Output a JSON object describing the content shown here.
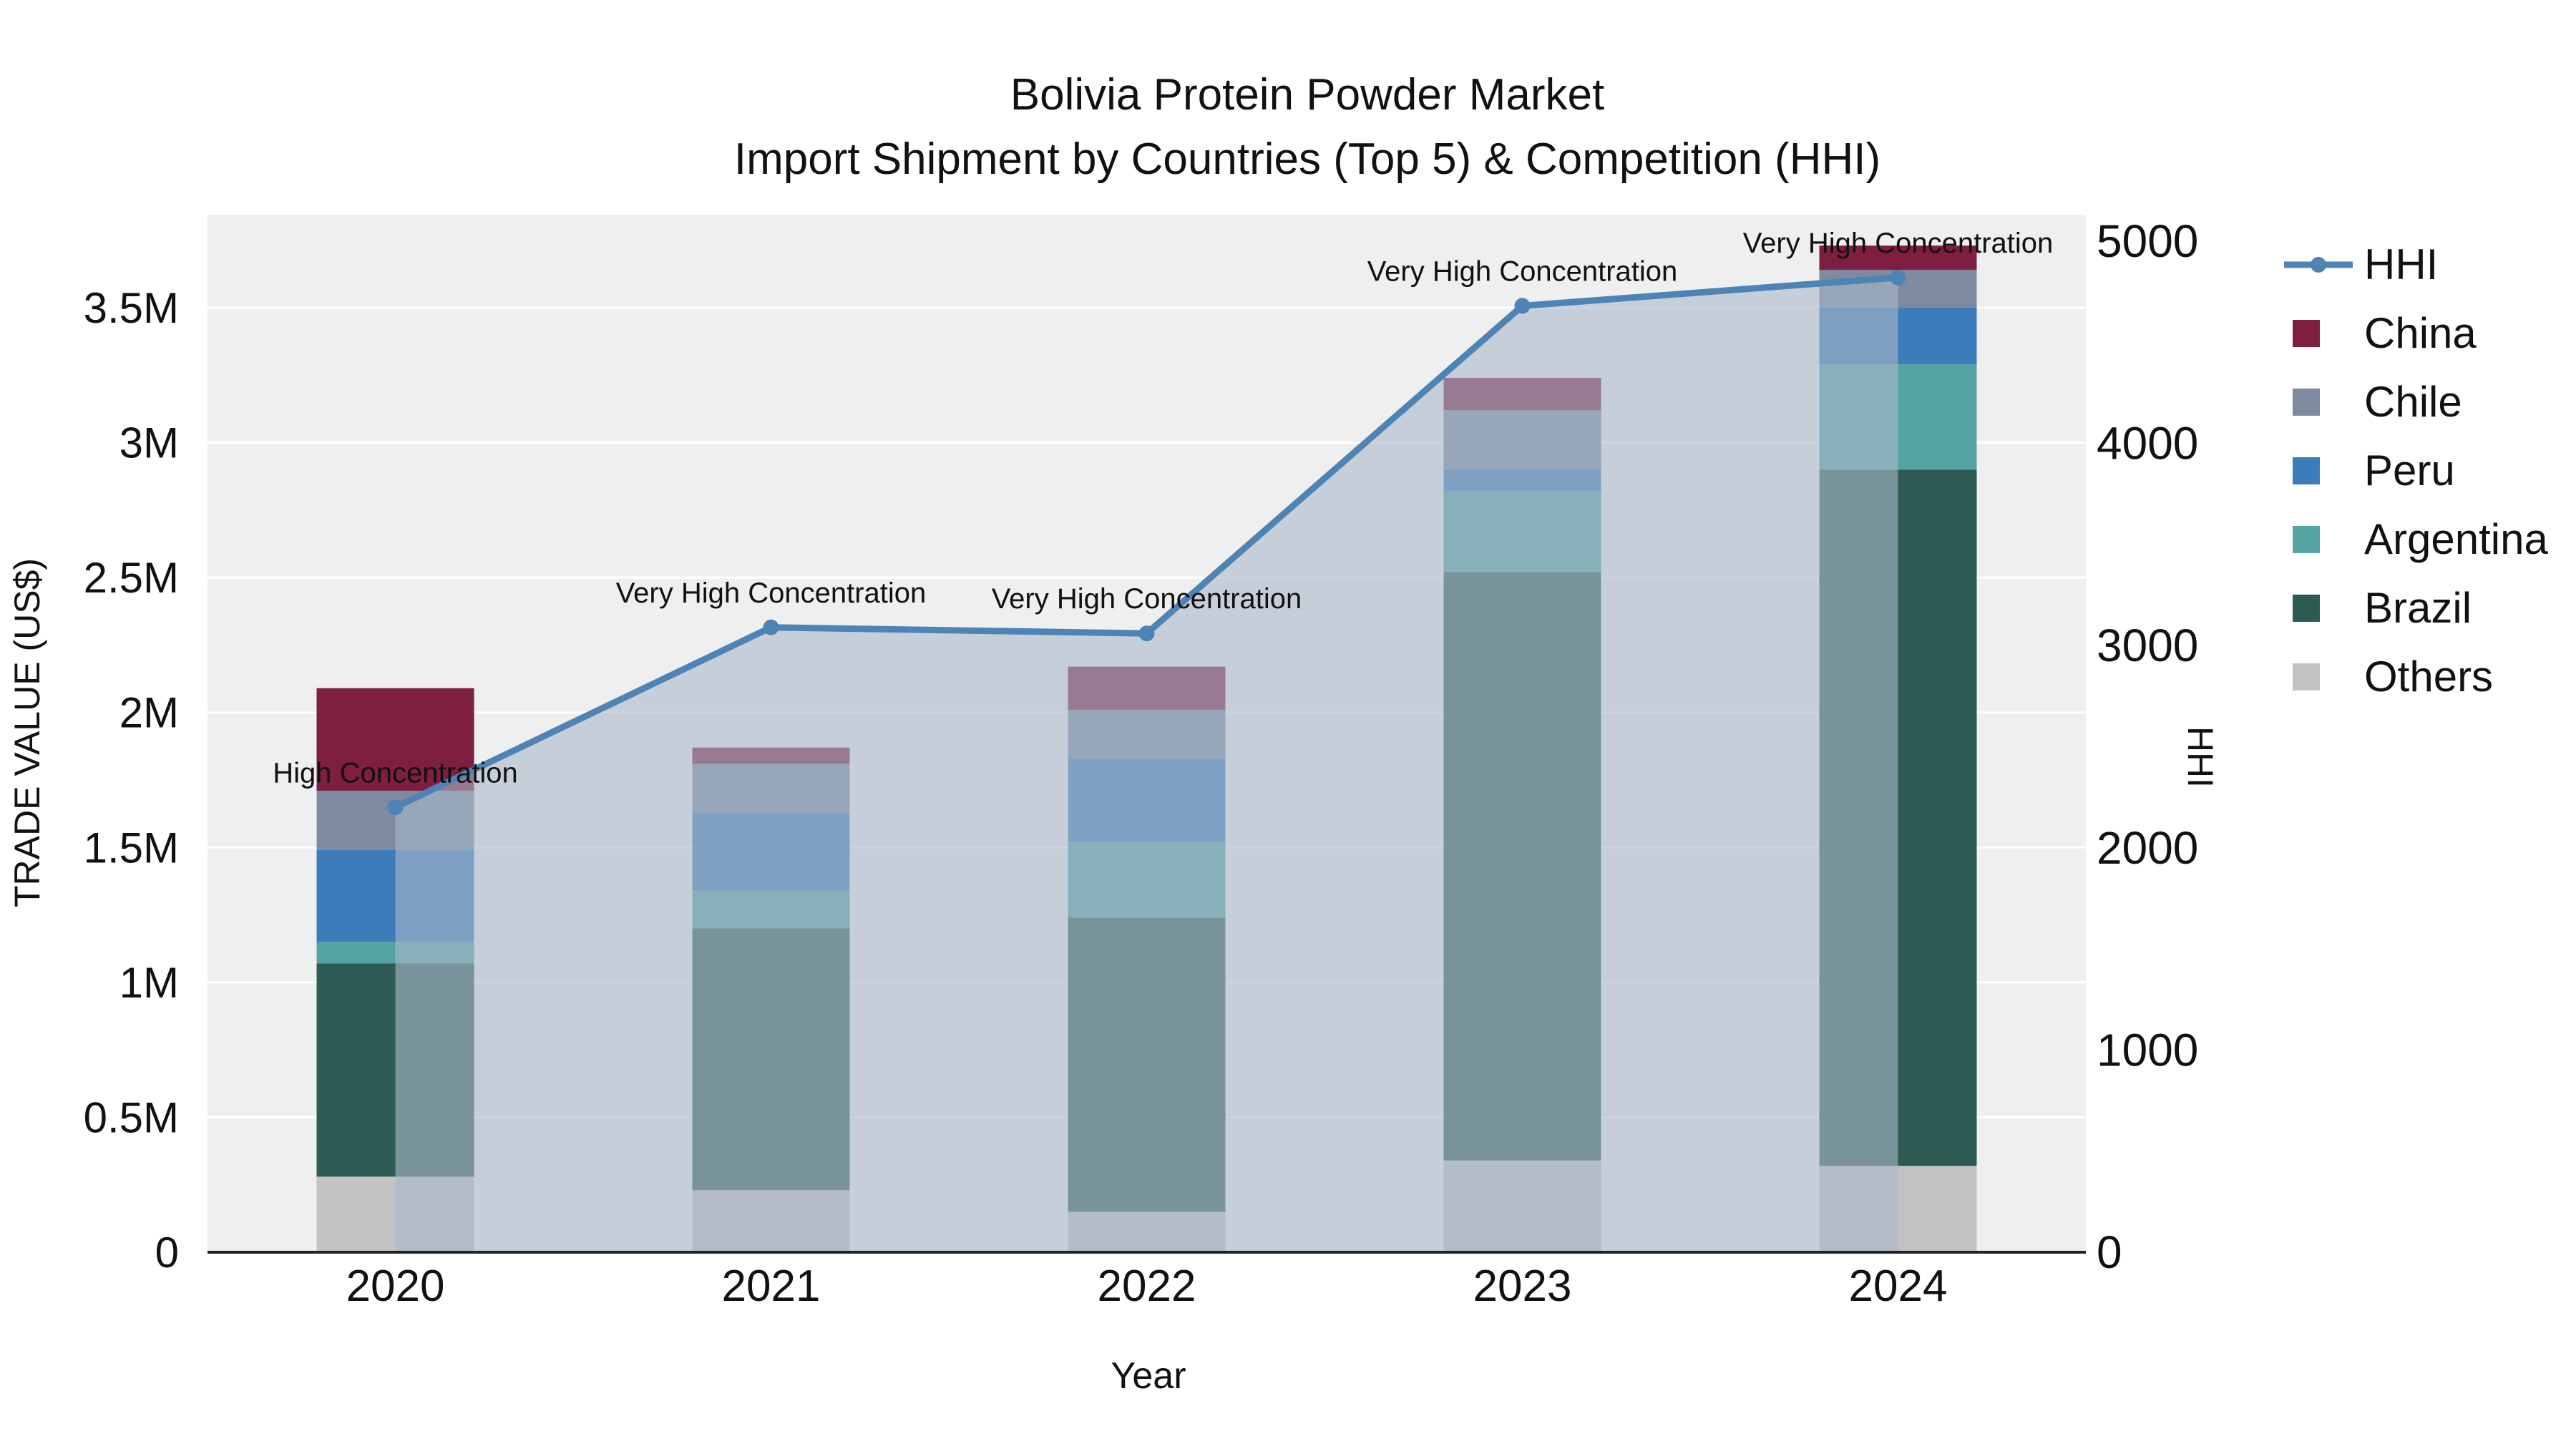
{
  "title": {
    "line1": "Bolivia Protein Powder Market",
    "line2": "Import Shipment by Countries (Top 5) & Competition (HHI)"
  },
  "axis_labels": {
    "y_left": "TRADE VALUE (US$)",
    "y_right": "HHI",
    "x": "Year"
  },
  "chart_data": {
    "type": "combo-stacked-bar-line",
    "categories": [
      "2020",
      "2021",
      "2022",
      "2023",
      "2024"
    ],
    "bar_value_unit": "US$",
    "bar_series": [
      {
        "name": "Others",
        "color": "#c3c3c3",
        "values": [
          280000,
          230000,
          150000,
          340000,
          320000
        ]
      },
      {
        "name": "Brazil",
        "color": "#2d5a52",
        "values": [
          790000,
          970000,
          1090000,
          2180000,
          2580000
        ]
      },
      {
        "name": "Argentina",
        "color": "#55a3a3",
        "values": [
          80000,
          140000,
          280000,
          300000,
          390000
        ]
      },
      {
        "name": "Peru",
        "color": "#3c7cba",
        "values": [
          340000,
          290000,
          310000,
          80000,
          210000
        ]
      },
      {
        "name": "Chile",
        "color": "#7e8aa0",
        "values": [
          220000,
          180000,
          180000,
          220000,
          140000
        ]
      },
      {
        "name": "China",
        "color": "#7e1e40",
        "values": [
          380000,
          60000,
          160000,
          120000,
          90000
        ]
      }
    ],
    "line_series": {
      "name": "HHI",
      "color": "#4d83b5",
      "area_fill": "#aab9ca",
      "values": [
        2200,
        3090,
        3060,
        4680,
        4820
      ]
    },
    "annotations": [
      {
        "x": "2020",
        "text": "High Concentration"
      },
      {
        "x": "2021",
        "text": "Very High Concentration"
      },
      {
        "x": "2022",
        "text": "Very High Concentration"
      },
      {
        "x": "2023",
        "text": "Very High Concentration"
      },
      {
        "x": "2024",
        "text": "Very High Concentration"
      }
    ],
    "left_axis": {
      "min": 0,
      "max": 3500000,
      "ticks": [
        0,
        500000,
        1000000,
        1500000,
        2000000,
        2500000,
        3000000,
        3500000
      ],
      "tick_labels": [
        "0",
        "0.5M",
        "1M",
        "1.5M",
        "2M",
        "2.5M",
        "3M",
        "3.5M"
      ]
    },
    "right_axis": {
      "min": 0,
      "max": 5000,
      "ticks": [
        0,
        1000,
        2000,
        3000,
        4000,
        5000
      ],
      "tick_labels": [
        "0",
        "1000",
        "2000",
        "3000",
        "4000",
        "5000"
      ]
    },
    "legend": [
      "HHI",
      "China",
      "Chile",
      "Peru",
      "Argentina",
      "Brazil",
      "Others"
    ],
    "plot_background": "#efefef",
    "grid_color": "#ffffff"
  }
}
